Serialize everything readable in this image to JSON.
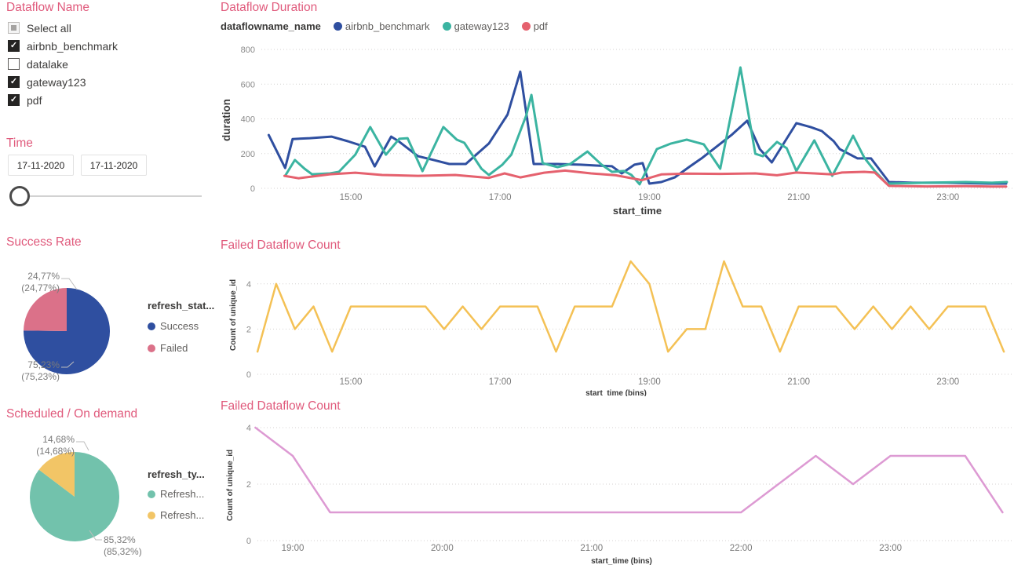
{
  "colors": {
    "accent_title": "#e05a7c",
    "blue": "#2f4fa0",
    "teal_line": "#3bb4a1",
    "rose_line": "#e5616e",
    "pie_pink": "#db7189",
    "pie_teal": "#72c2ac",
    "pie_yellow": "#f2c566",
    "yellow_line": "#f4c155",
    "orchid_line": "#dd9ad3"
  },
  "sidebar": {
    "dataflow_title": "Dataflow Name",
    "filters": {
      "items": [
        {
          "label": "Select all",
          "state": "partial"
        },
        {
          "label": "airbnb_benchmark",
          "state": "checked"
        },
        {
          "label": "datalake",
          "state": "unchecked"
        },
        {
          "label": "gateway123",
          "state": "checked"
        },
        {
          "label": "pdf",
          "state": "checked"
        }
      ]
    },
    "time": {
      "title": "Time",
      "from": "17-11-2020",
      "to": "17-11-2020"
    },
    "success": {
      "title": "Success Rate",
      "legend_title": "refresh_stat...",
      "slices": [
        {
          "name": "Success",
          "value": 75.23,
          "color": "#2f4fa0",
          "callout_line1": "75,23%",
          "callout_line2": "(75,23%)"
        },
        {
          "name": "Failed",
          "value": 24.77,
          "color": "#db7189",
          "callout_line1": "24,77%",
          "callout_line2": "(24,77%)"
        }
      ]
    },
    "schedule": {
      "title": "Scheduled / On demand",
      "legend_title": "refresh_ty...",
      "slices": [
        {
          "name": "Refresh...",
          "value": 85.32,
          "color": "#72c2ac",
          "callout_line1": "85,32%",
          "callout_line2": "(85,32%)"
        },
        {
          "name": "Refresh...",
          "value": 14.68,
          "color": "#f2c566",
          "callout_line1": "14,68%",
          "callout_line2": "(14,68%)"
        }
      ]
    }
  },
  "chart_data": [
    {
      "id": "duration",
      "type": "line",
      "title": "Dataflow Duration",
      "legend_title": "dataflowname_name",
      "xlabel": "start_time",
      "ylabel": "duration",
      "ylim": [
        0,
        800
      ],
      "yticks": [
        0,
        200,
        400,
        600,
        800
      ],
      "xticks": [
        {
          "t": 15,
          "label": "15:00"
        },
        {
          "t": 17,
          "label": "17:00"
        },
        {
          "t": 19,
          "label": "19:00"
        },
        {
          "t": 21,
          "label": "21:00"
        },
        {
          "t": 23,
          "label": "23:00"
        }
      ],
      "series": [
        {
          "name": "airbnb_benchmark",
          "color": "#2f4fa0",
          "values": [
            [
              13.9,
              307
            ],
            [
              14.12,
              117
            ],
            [
              14.22,
              284
            ],
            [
              14.45,
              289
            ],
            [
              14.74,
              298
            ],
            [
              14.96,
              271
            ],
            [
              15.19,
              239
            ],
            [
              15.32,
              126
            ],
            [
              15.54,
              298
            ],
            [
              15.64,
              271
            ],
            [
              15.9,
              185
            ],
            [
              16.11,
              163
            ],
            [
              16.32,
              140
            ],
            [
              16.54,
              140
            ],
            [
              16.68,
              194
            ],
            [
              16.85,
              258
            ],
            [
              17.1,
              425
            ],
            [
              17.27,
              672
            ],
            [
              17.45,
              140
            ],
            [
              17.77,
              140
            ],
            [
              18.08,
              136
            ],
            [
              18.29,
              131
            ],
            [
              18.5,
              127
            ],
            [
              18.63,
              86
            ],
            [
              18.8,
              136
            ],
            [
              18.91,
              145
            ],
            [
              19.0,
              27
            ],
            [
              19.16,
              36
            ],
            [
              19.34,
              63
            ],
            [
              19.53,
              122
            ],
            [
              19.71,
              176
            ],
            [
              19.9,
              240
            ],
            [
              20.1,
              307
            ],
            [
              20.31,
              389
            ],
            [
              20.48,
              226
            ],
            [
              20.64,
              149
            ],
            [
              20.97,
              375
            ],
            [
              21.16,
              353
            ],
            [
              21.31,
              330
            ],
            [
              21.47,
              271
            ],
            [
              21.55,
              226
            ],
            [
              21.79,
              172
            ],
            [
              21.97,
              172
            ],
            [
              22.21,
              36
            ],
            [
              22.53,
              32
            ],
            [
              22.99,
              32
            ],
            [
              23.55,
              27
            ],
            [
              23.78,
              27
            ]
          ]
        },
        {
          "name": "gateway123",
          "color": "#3bb4a1",
          "values": [
            [
              14.12,
              72
            ],
            [
              14.25,
              163
            ],
            [
              14.38,
              113
            ],
            [
              14.48,
              81
            ],
            [
              14.72,
              86
            ],
            [
              14.84,
              95
            ],
            [
              15.06,
              194
            ],
            [
              15.26,
              353
            ],
            [
              15.47,
              194
            ],
            [
              15.65,
              285
            ],
            [
              15.76,
              289
            ],
            [
              15.96,
              99
            ],
            [
              16.24,
              353
            ],
            [
              16.42,
              280
            ],
            [
              16.52,
              262
            ],
            [
              16.75,
              113
            ],
            [
              16.85,
              77
            ],
            [
              17.03,
              136
            ],
            [
              17.15,
              194
            ],
            [
              17.35,
              420
            ],
            [
              17.42,
              538
            ],
            [
              17.57,
              145
            ],
            [
              17.77,
              122
            ],
            [
              17.94,
              140
            ],
            [
              18.17,
              212
            ],
            [
              18.36,
              136
            ],
            [
              18.5,
              95
            ],
            [
              18.66,
              100
            ],
            [
              18.76,
              77
            ],
            [
              18.87,
              23
            ],
            [
              19.1,
              226
            ],
            [
              19.29,
              258
            ],
            [
              19.5,
              280
            ],
            [
              19.73,
              253
            ],
            [
              19.95,
              113
            ],
            [
              20.22,
              696
            ],
            [
              20.42,
              199
            ],
            [
              20.52,
              185
            ],
            [
              20.71,
              267
            ],
            [
              20.84,
              231
            ],
            [
              20.97,
              100
            ],
            [
              21.21,
              276
            ],
            [
              21.45,
              72
            ],
            [
              21.58,
              176
            ],
            [
              21.73,
              303
            ],
            [
              21.88,
              176
            ],
            [
              22.02,
              100
            ],
            [
              22.18,
              27
            ],
            [
              22.71,
              32
            ],
            [
              23.24,
              36
            ],
            [
              23.59,
              32
            ],
            [
              23.79,
              36
            ]
          ]
        },
        {
          "name": "pdf",
          "color": "#e5616e",
          "values": [
            [
              14.11,
              72
            ],
            [
              14.3,
              58
            ],
            [
              14.72,
              81
            ],
            [
              15.06,
              90
            ],
            [
              15.42,
              77
            ],
            [
              15.9,
              72
            ],
            [
              16.4,
              77
            ],
            [
              16.85,
              60
            ],
            [
              17.06,
              86
            ],
            [
              17.27,
              63
            ],
            [
              17.59,
              90
            ],
            [
              17.87,
              102
            ],
            [
              18.22,
              86
            ],
            [
              18.55,
              75
            ],
            [
              18.9,
              47
            ],
            [
              19.16,
              80
            ],
            [
              19.5,
              85
            ],
            [
              19.95,
              83
            ],
            [
              20.42,
              86
            ],
            [
              20.71,
              75
            ],
            [
              20.97,
              91
            ],
            [
              21.21,
              86
            ],
            [
              21.45,
              80
            ],
            [
              21.58,
              91
            ],
            [
              21.88,
              95
            ],
            [
              22.02,
              91
            ],
            [
              22.21,
              14
            ],
            [
              22.71,
              11
            ],
            [
              23.24,
              12
            ],
            [
              23.59,
              10
            ],
            [
              23.78,
              10
            ]
          ]
        }
      ]
    },
    {
      "id": "failed_count_day",
      "type": "line",
      "title": "Failed Dataflow Count",
      "xlabel": "start_time (bins)",
      "ylabel": "Count of unique_id",
      "ylim": [
        0,
        5
      ],
      "yticks": [
        0,
        2,
        4
      ],
      "xticks": [
        {
          "t": 15,
          "label": "15:00"
        },
        {
          "t": 17,
          "label": "17:00"
        },
        {
          "t": 19,
          "label": "19:00"
        },
        {
          "t": 21,
          "label": "21:00"
        },
        {
          "t": 23,
          "label": "23:00"
        }
      ],
      "series": [
        {
          "name": "Count of unique_id",
          "color": "#f4c155",
          "values": [
            [
              13.75,
              1
            ],
            [
              14,
              4
            ],
            [
              14.25,
              2
            ],
            [
              14.5,
              3
            ],
            [
              14.75,
              1
            ],
            [
              15,
              3
            ],
            [
              16,
              3
            ],
            [
              16.25,
              2
            ],
            [
              16.5,
              3
            ],
            [
              16.75,
              2
            ],
            [
              17,
              3
            ],
            [
              17.5,
              3
            ],
            [
              17.75,
              1
            ],
            [
              18,
              3
            ],
            [
              18.5,
              3
            ],
            [
              18.75,
              5
            ],
            [
              19,
              4
            ],
            [
              19.25,
              1
            ],
            [
              19.5,
              2
            ],
            [
              19.75,
              2
            ],
            [
              20,
              5
            ],
            [
              20.25,
              3
            ],
            [
              20.5,
              3
            ],
            [
              20.75,
              1
            ],
            [
              21,
              3
            ],
            [
              21.5,
              3
            ],
            [
              21.75,
              2
            ],
            [
              22,
              3
            ],
            [
              22.25,
              2
            ],
            [
              22.5,
              3
            ],
            [
              22.75,
              2
            ],
            [
              23,
              3
            ],
            [
              23.5,
              3
            ],
            [
              23.75,
              1
            ]
          ]
        }
      ]
    },
    {
      "id": "failed_count_evening",
      "type": "line",
      "title": "Failed Dataflow Count",
      "xlabel": "start_time (bins)",
      "ylabel": "Count of unique_id",
      "ylim": [
        0,
        4
      ],
      "yticks": [
        0,
        2,
        4
      ],
      "xticks": [
        {
          "t": 19,
          "label": "19:00"
        },
        {
          "t": 20,
          "label": "20:00"
        },
        {
          "t": 21,
          "label": "21:00"
        },
        {
          "t": 22,
          "label": "22:00"
        },
        {
          "t": 23,
          "label": "23:00"
        }
      ],
      "series": [
        {
          "name": "Count of unique_id",
          "color": "#dd9ad3",
          "values": [
            [
              18.75,
              4
            ],
            [
              19.0,
              3
            ],
            [
              19.25,
              1
            ],
            [
              22.0,
              1
            ],
            [
              22.5,
              3
            ],
            [
              22.75,
              2
            ],
            [
              23.0,
              3
            ],
            [
              23.5,
              3
            ],
            [
              23.75,
              1
            ]
          ]
        }
      ]
    }
  ]
}
